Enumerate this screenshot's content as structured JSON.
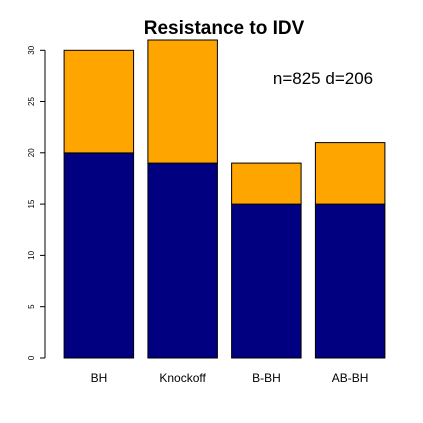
{
  "chart_data": {
    "type": "bar",
    "stacked": true,
    "title": "Resistance to IDV",
    "annotation": "n=825 d=206",
    "xlabel": "",
    "ylabel": "",
    "categories": [
      "BH",
      "Knockoff",
      "B-BH",
      "AB-BH"
    ],
    "series": [
      {
        "values": [
          20,
          19,
          15,
          15
        ],
        "color": "#000080"
      },
      {
        "values": [
          10,
          12,
          4,
          6
        ],
        "color": "#FFA500"
      }
    ],
    "ylim": [
      0,
      31
    ],
    "yticks": [
      0,
      5,
      10,
      15,
      20,
      25,
      30
    ],
    "grid": false,
    "legend": "none"
  }
}
